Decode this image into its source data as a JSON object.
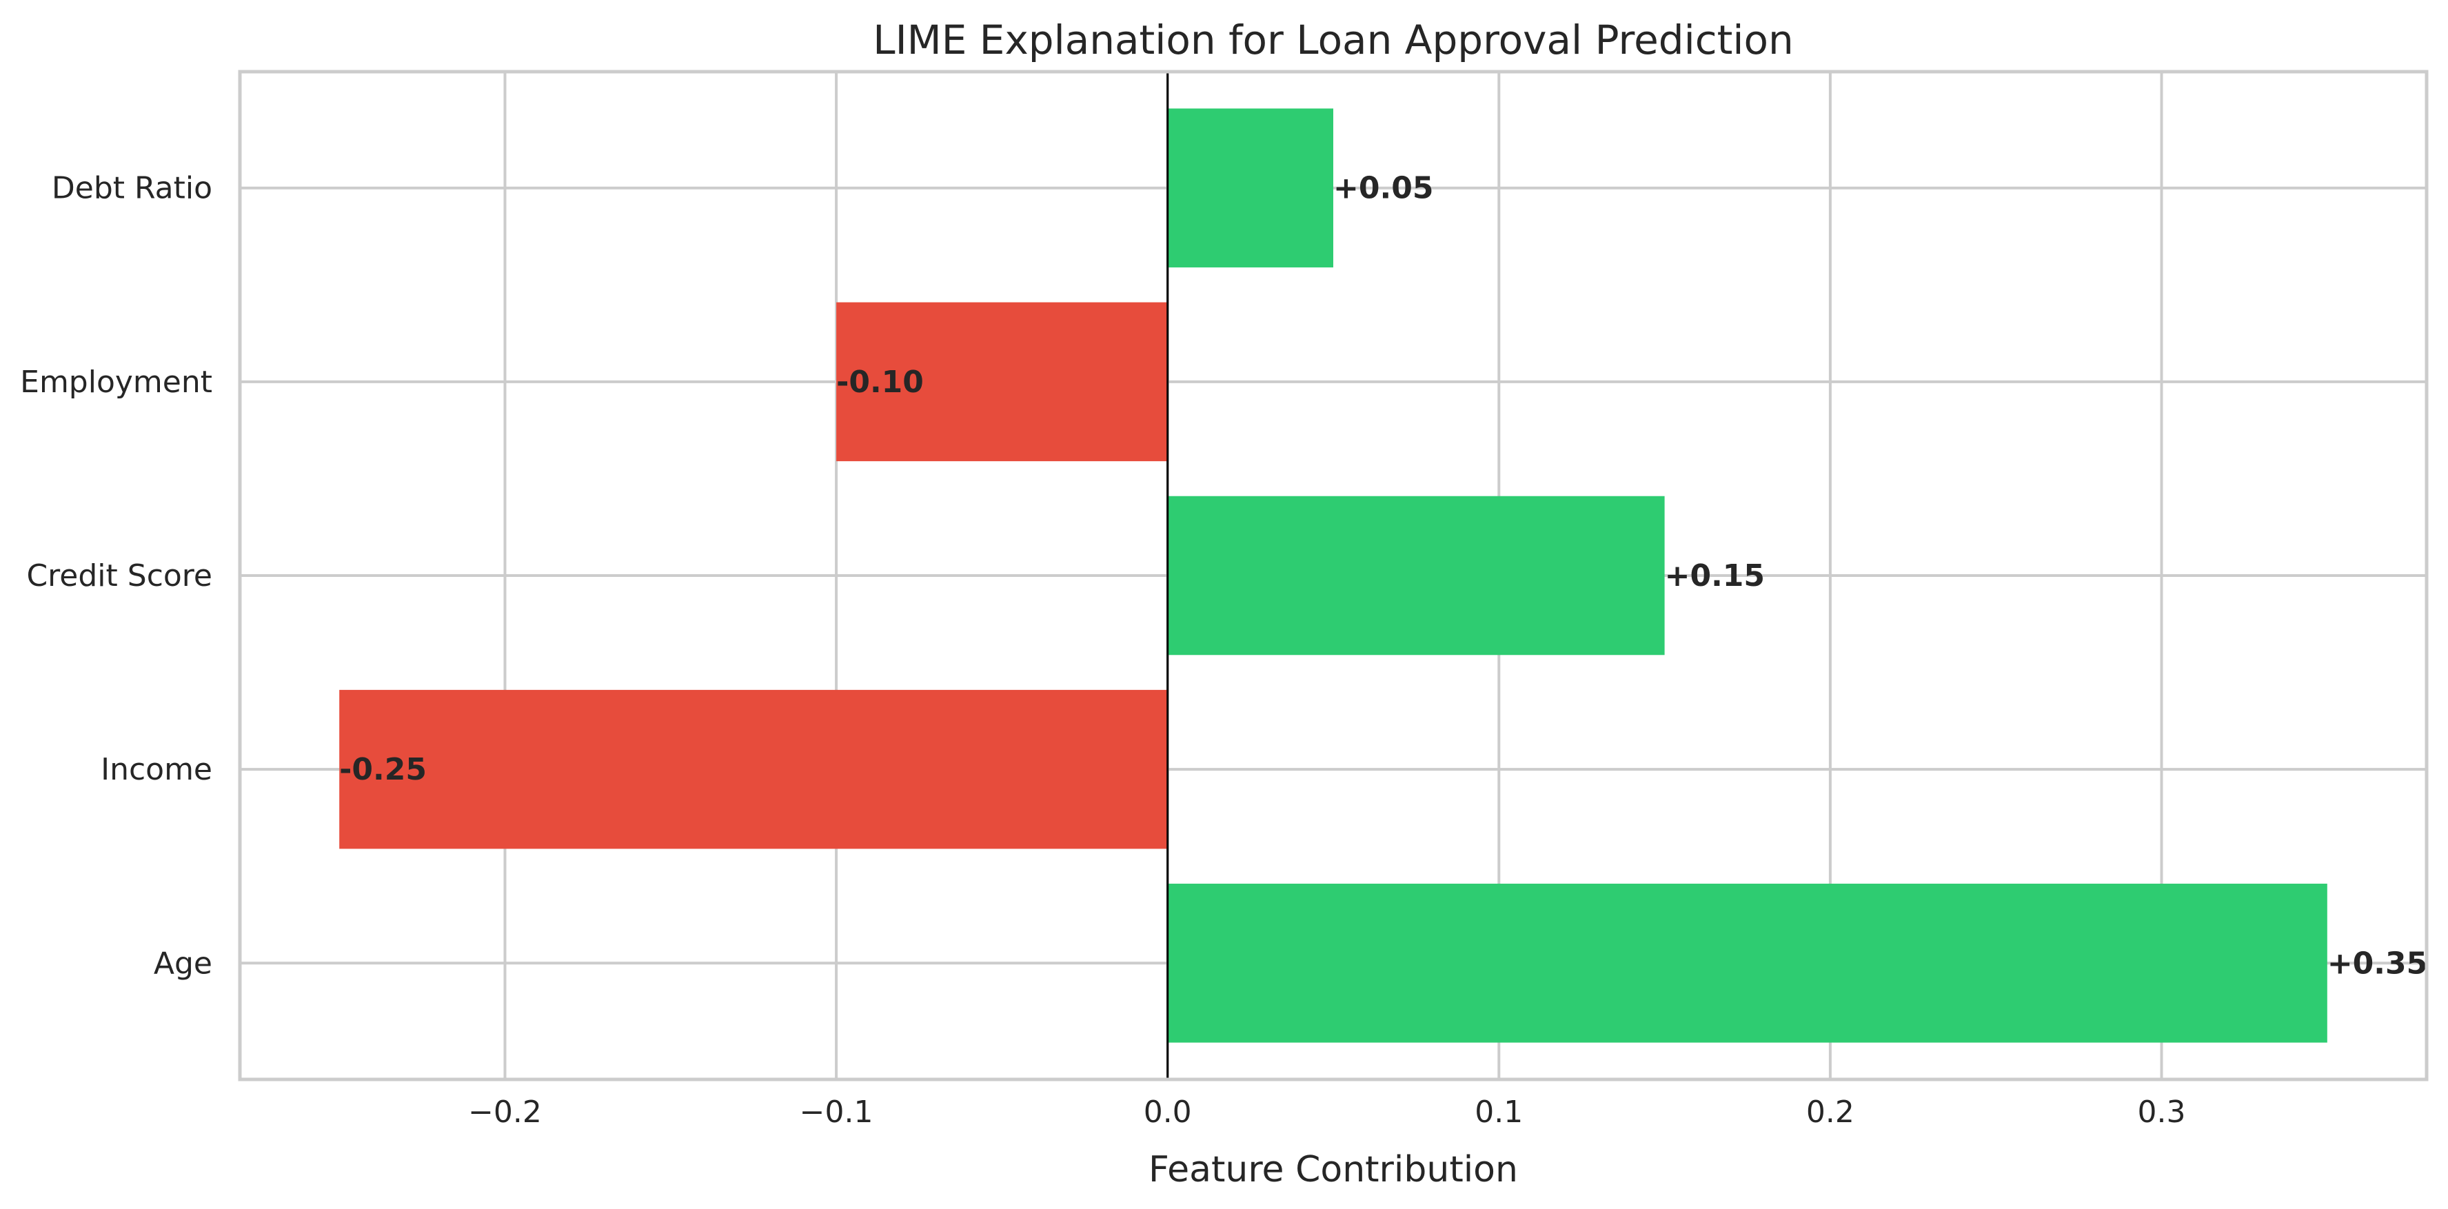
{
  "chart_data": {
    "type": "bar",
    "orientation": "horizontal",
    "title": "LIME Explanation for Loan Approval Prediction",
    "xlabel": "Feature Contribution",
    "ylabel": "",
    "categories": [
      "Age",
      "Income",
      "Credit Score",
      "Employment",
      "Debt Ratio"
    ],
    "values": [
      0.35,
      -0.25,
      0.15,
      -0.1,
      0.05
    ],
    "value_labels": [
      "+0.35",
      "-0.25",
      "+0.15",
      "-0.10",
      "+0.05"
    ],
    "xlim": [
      -0.28,
      0.38
    ],
    "x_ticks": [
      -0.2,
      -0.1,
      0.0,
      0.1,
      0.2,
      0.3
    ],
    "x_tick_labels": [
      "−0.2",
      "−0.1",
      "0.0",
      "0.1",
      "0.2",
      "0.3"
    ],
    "grid": true,
    "colors": {
      "positive": "#2ecc71",
      "negative": "#e74c3c",
      "zero_line": "#000000",
      "grid": "#cccccc"
    }
  }
}
